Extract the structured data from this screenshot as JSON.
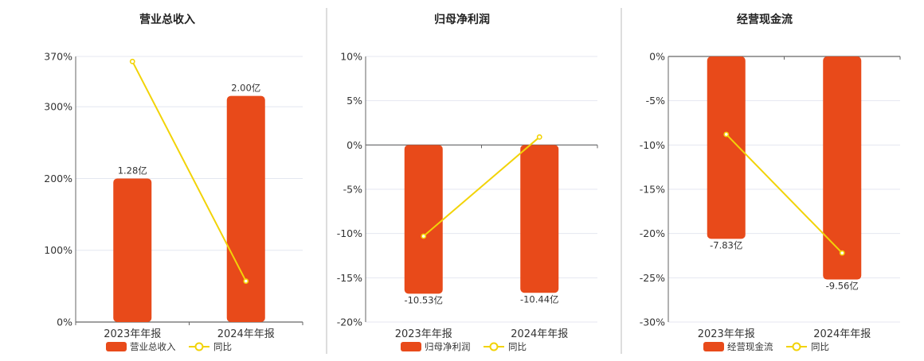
{
  "colors": {
    "bar": "#E84A1A",
    "line": "#F2D308",
    "grid": "#E4E7F0",
    "axis": "#666666",
    "divider": "#BBBBBB"
  },
  "chart_data": [
    {
      "type": "bar",
      "title": "营业总收入",
      "categories": [
        "2023年年报",
        "2024年年报"
      ],
      "ylim": [
        0,
        370
      ],
      "yticks": [
        0,
        100,
        200,
        300,
        370
      ],
      "tick_format": "%",
      "series": [
        {
          "name": "营业总收入",
          "type": "bar",
          "values": [
            200,
            315
          ],
          "labels": [
            "1.28亿",
            "2.00亿"
          ]
        },
        {
          "name": "同比",
          "type": "line",
          "values": [
            363,
            57
          ]
        }
      ],
      "grid": true,
      "legend": "bottom"
    },
    {
      "type": "bar",
      "title": "归母净利润",
      "categories": [
        "2023年年报",
        "2024年年报"
      ],
      "ylim": [
        -20,
        10
      ],
      "yticks": [
        -20,
        -15,
        -10,
        -5,
        0,
        5,
        10
      ],
      "tick_format": "%",
      "series": [
        {
          "name": "归母净利润",
          "type": "bar",
          "values": [
            -16.8,
            -16.7
          ],
          "labels": [
            "-10.53亿",
            "-10.44亿"
          ]
        },
        {
          "name": "同比",
          "type": "line",
          "values": [
            -10.3,
            0.9
          ]
        }
      ],
      "grid": true,
      "legend": "bottom"
    },
    {
      "type": "bar",
      "title": "经营现金流",
      "categories": [
        "2023年年报",
        "2024年年报"
      ],
      "ylim": [
        -30,
        0
      ],
      "yticks": [
        -30,
        -25,
        -20,
        -15,
        -10,
        -5,
        0
      ],
      "tick_format": "%",
      "series": [
        {
          "name": "经营现金流",
          "type": "bar",
          "values": [
            -20.6,
            -25.2
          ],
          "labels": [
            "-7.83亿",
            "-9.56亿"
          ]
        },
        {
          "name": "同比",
          "type": "line",
          "values": [
            -8.8,
            -22.2
          ]
        }
      ],
      "grid": true,
      "legend": "bottom"
    }
  ]
}
